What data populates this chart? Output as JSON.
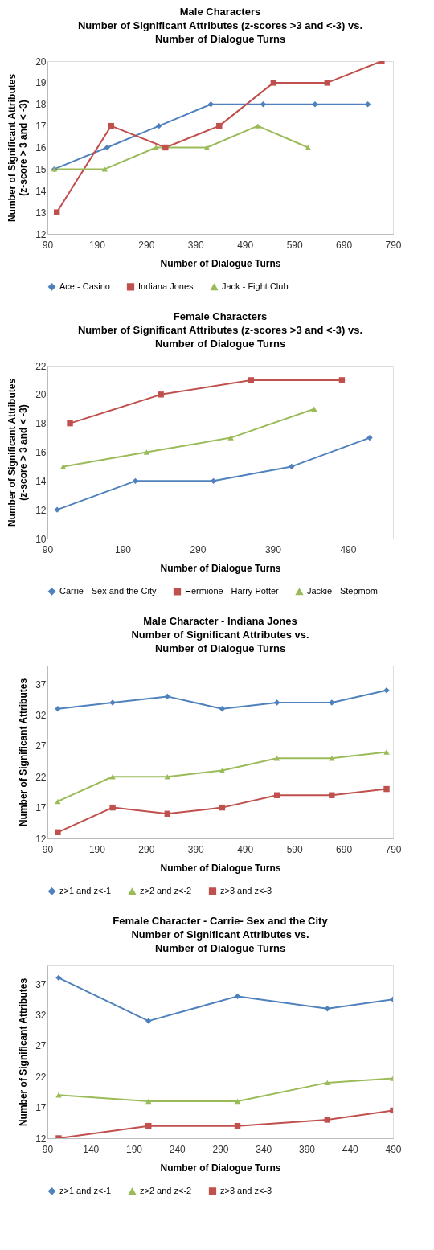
{
  "chart_data": [
    {
      "type": "line",
      "title": "Male Characters\nNumber of Significant Attributes (z-scores >3 and <-3) vs.\nNumber of Dialogue Turns",
      "xlabel": "Number of Dialogue Turns",
      "ylabel": "Number of Significant Attributes\n(z-score > 3 and < -3)",
      "xlim": [
        90,
        790
      ],
      "xticks": [
        90,
        190,
        290,
        390,
        490,
        590,
        690,
        790
      ],
      "ylim": [
        12,
        20
      ],
      "yticks": [
        12,
        13,
        14,
        15,
        16,
        17,
        18,
        19,
        20
      ],
      "grid": false,
      "legend": "bottom",
      "series": [
        {
          "name": "Ace - Casino",
          "color": "#4f81bd",
          "marker": "diamond",
          "x": [
            104,
            211,
            316,
            421,
            527,
            632,
            739
          ],
          "values": [
            15,
            16,
            17,
            18,
            18,
            18,
            18
          ]
        },
        {
          "name": "Indiana Jones",
          "color": "#c0504d",
          "marker": "square",
          "x": [
            109,
            219,
            329,
            438,
            548,
            657,
            767
          ],
          "values": [
            13,
            17,
            16,
            17,
            19,
            19,
            20
          ]
        },
        {
          "name": "Jack - Fight Club",
          "color": "#9bbb59",
          "marker": "triangle",
          "x": [
            104,
            206,
            310,
            413,
            516,
            618
          ],
          "values": [
            15,
            15,
            16,
            16,
            17,
            16
          ]
        }
      ]
    },
    {
      "type": "line",
      "title": "Female Characters\nNumber of Significant Attributes (z-scores >3 and <-3) vs.\nNumber of Dialogue Turns",
      "xlabel": "Number of Dialogue Turns",
      "ylabel": "Number of Significant Attributes\n(z-score > 3 and < -3)",
      "xlim": [
        90,
        550
      ],
      "xticks": [
        90,
        190,
        290,
        390,
        490
      ],
      "ylim": [
        10,
        22
      ],
      "yticks": [
        10,
        12,
        14,
        16,
        18,
        20,
        22
      ],
      "grid": false,
      "legend": "bottom",
      "series": [
        {
          "name": "Carrie - Sex and the City",
          "color": "#4f81bd",
          "marker": "diamond",
          "x": [
            103,
            207,
            311,
            415,
            519
          ],
          "values": [
            12,
            14,
            14,
            15,
            17
          ]
        },
        {
          "name": "Hermione - Harry Potter",
          "color": "#c0504d",
          "marker": "square",
          "x": [
            120,
            241,
            361,
            482
          ],
          "values": [
            18,
            20,
            21,
            21
          ]
        },
        {
          "name": "Jackie - Stepmom",
          "color": "#9bbb59",
          "marker": "triangle",
          "x": [
            111,
            222,
            334,
            445
          ],
          "values": [
            15,
            16,
            17,
            19
          ]
        }
      ]
    },
    {
      "type": "line",
      "title": "Male Character - Indiana Jones\nNumber of Significant Attributes  vs.\nNumber of Dialogue Turns",
      "xlabel": "Number of Dialogue Turns",
      "ylabel": "Number of Significant Attributes",
      "xlim": [
        90,
        790
      ],
      "xticks": [
        90,
        190,
        290,
        390,
        490,
        590,
        690,
        790
      ],
      "ylim": [
        12,
        40
      ],
      "yticks": [
        12,
        17,
        22,
        27,
        32,
        37
      ],
      "grid": false,
      "legend": "bottom",
      "series": [
        {
          "name": "z>1 and z<-1",
          "color": "#4f81bd",
          "marker": "diamond",
          "x": [
            111,
            222,
            333,
            444,
            555,
            666,
            777
          ],
          "values": [
            33,
            34,
            35,
            33,
            34,
            34,
            36
          ]
        },
        {
          "name": "z>2 and z<-2",
          "color": "#9bbb59",
          "marker": "triangle",
          "x": [
            111,
            222,
            333,
            444,
            555,
            666,
            777
          ],
          "values": [
            18,
            22,
            22,
            23,
            25,
            25,
            26
          ]
        },
        {
          "name": "z>3 and z<-3",
          "color": "#c0504d",
          "marker": "square",
          "x": [
            111,
            222,
            333,
            444,
            555,
            666,
            777
          ],
          "values": [
            13,
            17,
            16,
            17,
            19,
            19,
            20
          ]
        }
      ]
    },
    {
      "type": "line",
      "title": "Female Character - Carrie- Sex and the City\nNumber of Significant Attributes  vs.\nNumber of Dialogue Turns",
      "xlabel": "Number of Dialogue Turns",
      "ylabel": "Number of Significant Attributes",
      "xlim": [
        90,
        490
      ],
      "xticks": [
        90,
        140,
        190,
        240,
        290,
        340,
        390,
        440,
        490
      ],
      "ylim": [
        12,
        40
      ],
      "yticks": [
        12,
        17,
        22,
        27,
        32,
        37
      ],
      "grid": false,
      "legend": "bottom",
      "series": [
        {
          "name": "z>1 and z<-1",
          "color": "#4f81bd",
          "marker": "diamond",
          "x": [
            103,
            207,
            310,
            414,
            490
          ],
          "values": [
            38,
            31,
            35,
            33,
            34.5
          ]
        },
        {
          "name": "z>2 and z<-2",
          "color": "#9bbb59",
          "marker": "triangle",
          "x": [
            103,
            207,
            310,
            414,
            490
          ],
          "values": [
            19,
            18,
            18,
            21,
            21.7
          ]
        },
        {
          "name": "z>3 and z<-3",
          "color": "#c0504d",
          "marker": "square",
          "x": [
            103,
            207,
            310,
            414,
            490
          ],
          "values": [
            12,
            14,
            14,
            15,
            16.5
          ]
        }
      ]
    }
  ]
}
